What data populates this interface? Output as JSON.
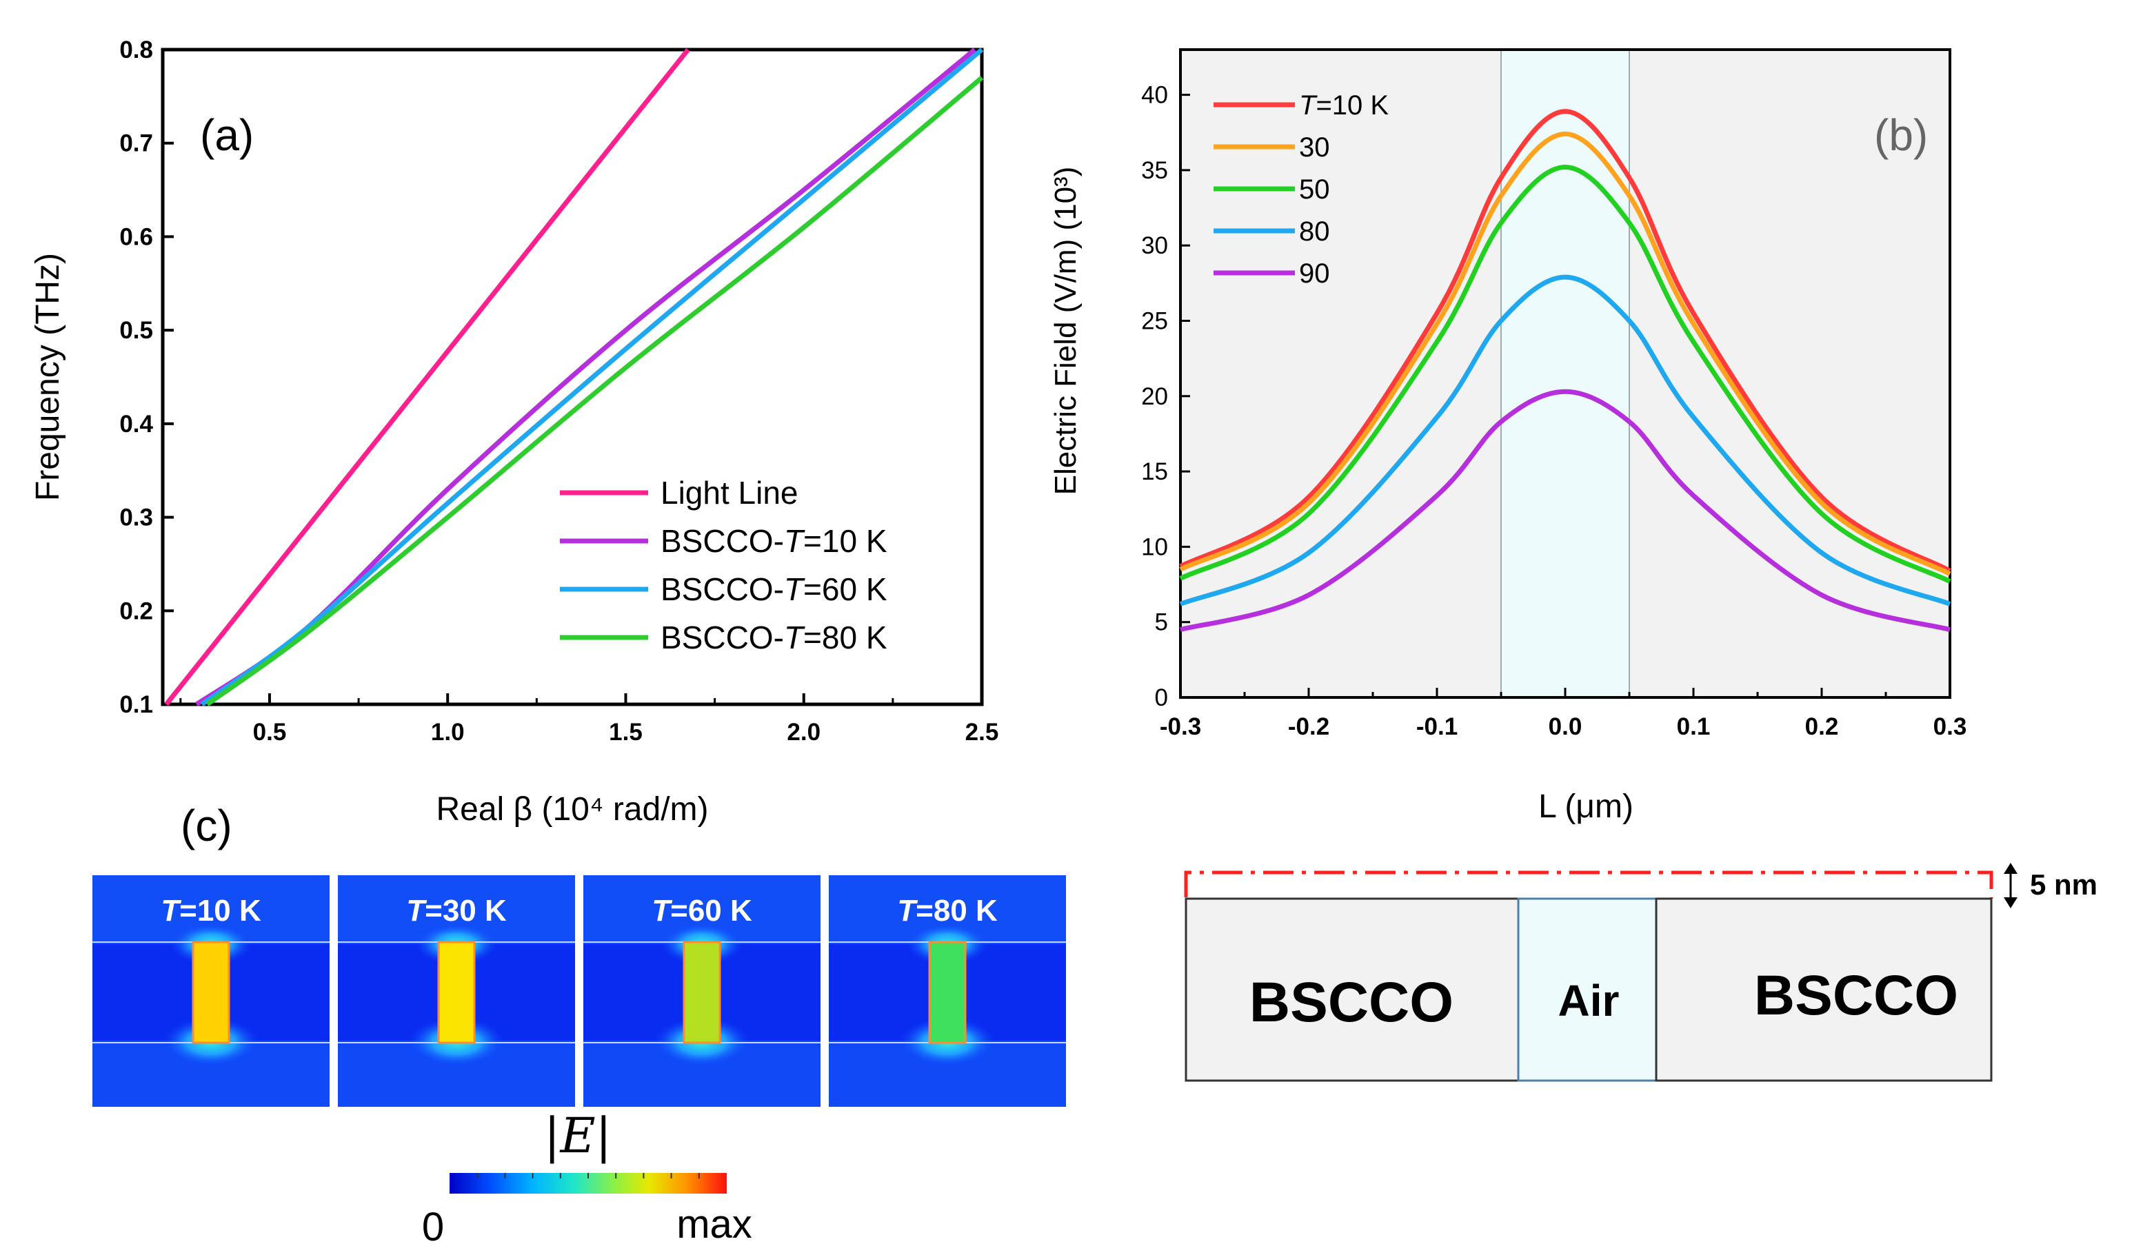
{
  "panels": {
    "a": "(a)",
    "b": "(b)",
    "c": "(c)"
  },
  "chart_data": [
    {
      "type": "line",
      "panel": "(a)",
      "xlabel": "Real β (10⁴ rad/m)",
      "ylabel": "Frequency (THz)",
      "xlim": [
        0.2,
        2.5
      ],
      "ylim": [
        0.1,
        0.8
      ],
      "xticks": [
        "0.5",
        "1.0",
        "1.5",
        "2.0",
        "2.5"
      ],
      "yticks": [
        "0.1",
        "0.2",
        "0.3",
        "0.4",
        "0.5",
        "0.6",
        "0.7",
        "0.8"
      ],
      "legend_position": "bottom-right",
      "series": [
        {
          "name": "Light Line",
          "color": "#ff1f8e",
          "x": [
            0.21,
            1.675
          ],
          "y": [
            0.1,
            0.8
          ]
        },
        {
          "name": "BSCCO-T=10 K",
          "color": "#b62fdc",
          "x": [
            0.295,
            0.6,
            1.0,
            1.5,
            2.0,
            2.48
          ],
          "y": [
            0.1,
            0.18,
            0.33,
            0.5,
            0.65,
            0.8
          ]
        },
        {
          "name": "BSCCO-T=60 K",
          "color": "#1fa8f0",
          "x": [
            0.31,
            0.6,
            1.0,
            1.5,
            2.0,
            2.5
          ],
          "y": [
            0.1,
            0.18,
            0.315,
            0.48,
            0.64,
            0.8
          ]
        },
        {
          "name": "BSCCO-T=80 K",
          "color": "#2ecc2e",
          "x": [
            0.325,
            0.6,
            1.0,
            1.5,
            2.0,
            2.5
          ],
          "y": [
            0.1,
            0.175,
            0.3,
            0.46,
            0.61,
            0.77
          ]
        }
      ]
    },
    {
      "type": "line",
      "panel": "(b)",
      "xlabel": "L (μm)",
      "ylabel": "Electric Field (V/m) (10³)",
      "xlim": [
        -0.3,
        0.3
      ],
      "ylim": [
        0,
        43
      ],
      "xticks": [
        "-0.3",
        "-0.2",
        "-0.1",
        "0.0",
        "0.1",
        "0.2",
        "0.3"
      ],
      "yticks": [
        "0",
        "5",
        "10",
        "15",
        "20",
        "25",
        "30",
        "35",
        "40"
      ],
      "legend_position": "top-left",
      "series": [
        {
          "name": "T=10 K",
          "color": "#ff3b3b",
          "x": [
            -0.3,
            -0.2,
            -0.1,
            -0.05,
            0.0,
            0.05,
            0.1,
            0.2,
            0.3
          ],
          "y": [
            8.7,
            13.3,
            25.5,
            34.5,
            38.9,
            34.5,
            25.5,
            13.3,
            8.4
          ]
        },
        {
          "name": "30",
          "color": "#ffa21e",
          "x": [
            -0.3,
            -0.2,
            -0.1,
            -0.05,
            0.0,
            0.05,
            0.1,
            0.2,
            0.3
          ],
          "y": [
            8.5,
            12.9,
            24.8,
            33.3,
            37.4,
            33.3,
            24.8,
            12.9,
            8.2
          ]
        },
        {
          "name": "50",
          "color": "#22d022",
          "x": [
            -0.3,
            -0.2,
            -0.1,
            -0.05,
            0.0,
            0.05,
            0.1,
            0.2,
            0.3
          ],
          "y": [
            7.9,
            12.2,
            23.6,
            31.5,
            35.2,
            31.5,
            23.6,
            12.2,
            7.7
          ]
        },
        {
          "name": "80",
          "color": "#1fa8f0",
          "x": [
            -0.3,
            -0.2,
            -0.1,
            -0.05,
            0.0,
            0.05,
            0.1,
            0.2,
            0.3
          ],
          "y": [
            6.2,
            9.6,
            18.6,
            25.0,
            27.9,
            25.0,
            18.6,
            9.6,
            6.2
          ]
        },
        {
          "name": "90",
          "color": "#b62fdc",
          "x": [
            -0.3,
            -0.2,
            -0.1,
            -0.05,
            0.0,
            0.05,
            0.1,
            0.2,
            0.3
          ],
          "y": [
            4.5,
            6.8,
            13.4,
            18.3,
            20.3,
            18.3,
            13.4,
            6.8,
            4.5
          ]
        }
      ],
      "shaded_region": {
        "from": -0.05,
        "to": 0.05
      }
    }
  ],
  "field_maps": {
    "title": "|E|",
    "colorbar_min": "0",
    "colorbar_max": "max",
    "tiles": [
      {
        "label_T": "T",
        "label_rest": "=10 K",
        "fill_color": "#ffd200"
      },
      {
        "label_T": "T",
        "label_rest": "=30 K",
        "fill_color": "#fbe500"
      },
      {
        "label_T": "T",
        "label_rest": "=60 K",
        "fill_color": "#b4e021"
      },
      {
        "label_T": "T",
        "label_rest": "=80 K",
        "fill_color": "#3fe05e"
      }
    ]
  },
  "schematic": {
    "left_label": "BSCCO",
    "middle_label": "Air",
    "right_label": "BSCCO",
    "thickness_label": "5 nm"
  }
}
